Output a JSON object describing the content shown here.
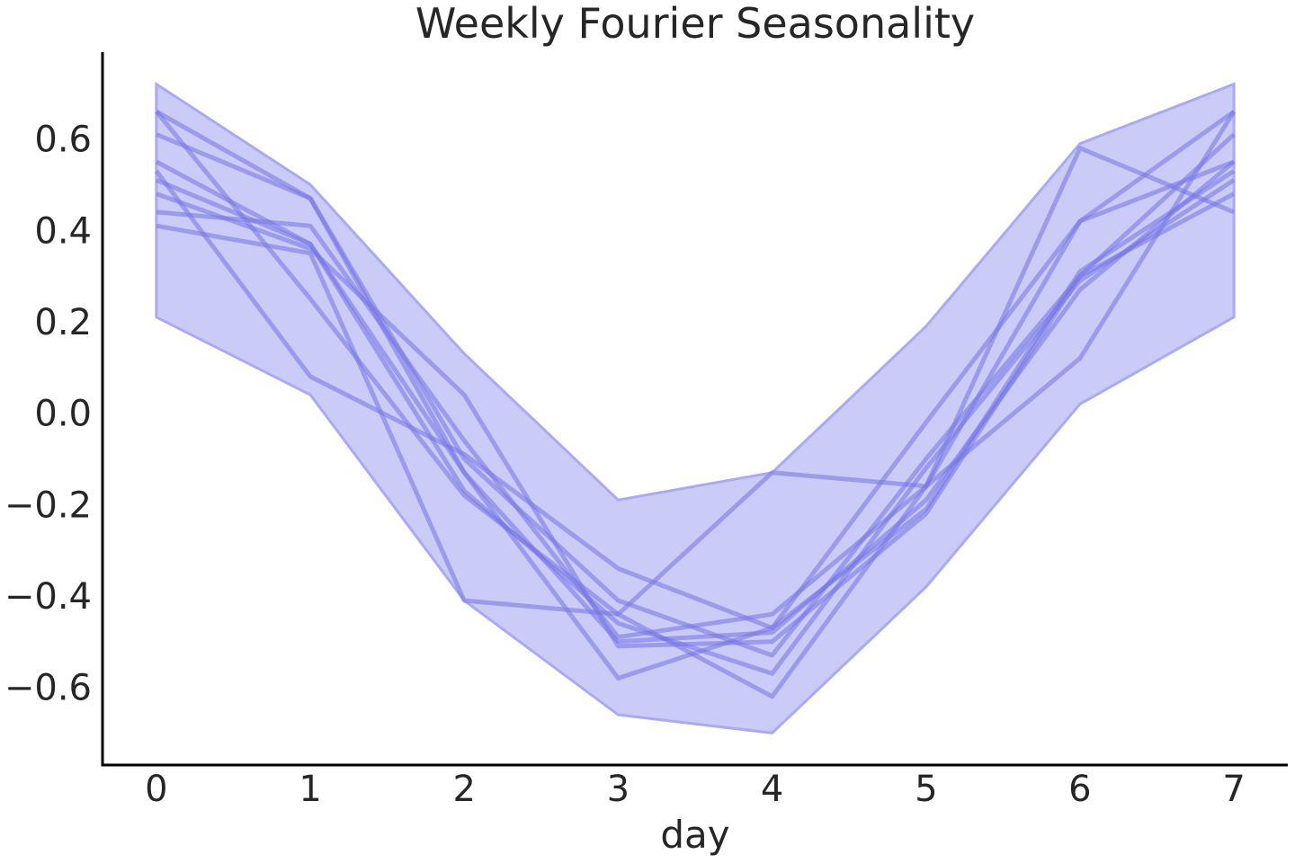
{
  "chart_data": {
    "type": "line",
    "title": "Weekly Fourier Seasonality",
    "xlabel": "day",
    "ylabel": "",
    "x": [
      0,
      1,
      2,
      3,
      4,
      5,
      6,
      7
    ],
    "xlim": [
      -0.35,
      7.35
    ],
    "ylim": [
      -0.77,
      0.79
    ],
    "xticks": [
      "0",
      "1",
      "2",
      "3",
      "4",
      "5",
      "6",
      "7"
    ],
    "yticks": [
      {
        "value": 0.6,
        "label": "0.6"
      },
      {
        "value": 0.4,
        "label": "0.4"
      },
      {
        "value": 0.2,
        "label": "0.2"
      },
      {
        "value": 0.0,
        "label": "0.0"
      },
      {
        "value": -0.2,
        "label": "−0.2"
      },
      {
        "value": -0.4,
        "label": "−0.4"
      },
      {
        "value": -0.6,
        "label": "−0.6"
      }
    ],
    "grid": false,
    "band": {
      "upper": [
        0.72,
        0.5,
        0.13,
        -0.19,
        -0.13,
        0.19,
        0.59,
        0.72
      ],
      "lower": [
        0.21,
        0.04,
        -0.41,
        -0.66,
        -0.7,
        -0.38,
        0.02,
        0.21
      ]
    },
    "series": [
      {
        "values": [
          0.66,
          0.47,
          -0.13,
          -0.58,
          -0.47,
          -0.02,
          0.42,
          0.55
        ]
      },
      {
        "values": [
          0.66,
          0.25,
          -0.18,
          -0.44,
          -0.62,
          -0.16,
          0.42,
          0.66
        ]
      },
      {
        "values": [
          0.61,
          0.47,
          -0.1,
          -0.41,
          -0.53,
          -0.1,
          0.3,
          0.61
        ]
      },
      {
        "values": [
          0.55,
          0.37,
          -0.13,
          -0.5,
          -0.48,
          -0.19,
          0.27,
          0.55
        ]
      },
      {
        "values": [
          0.53,
          0.08,
          -0.09,
          -0.34,
          -0.47,
          -0.21,
          0.31,
          0.53
        ]
      },
      {
        "values": [
          0.51,
          0.37,
          -0.17,
          -0.46,
          -0.57,
          -0.12,
          0.29,
          0.51
        ]
      },
      {
        "values": [
          0.48,
          0.36,
          0.04,
          -0.51,
          -0.5,
          -0.22,
          0.3,
          0.48
        ]
      },
      {
        "values": [
          0.44,
          0.41,
          -0.06,
          -0.49,
          -0.44,
          -0.16,
          0.58,
          0.44
        ]
      },
      {
        "values": [
          0.41,
          0.35,
          -0.41,
          -0.44,
          -0.13,
          -0.16,
          0.12,
          0.66
        ]
      }
    ],
    "colors": {
      "band_fill": "#c8c8f8",
      "band_edge": "#aaaaf4",
      "line": "#7474e6",
      "axis": "#000000",
      "text": "#262626"
    }
  }
}
